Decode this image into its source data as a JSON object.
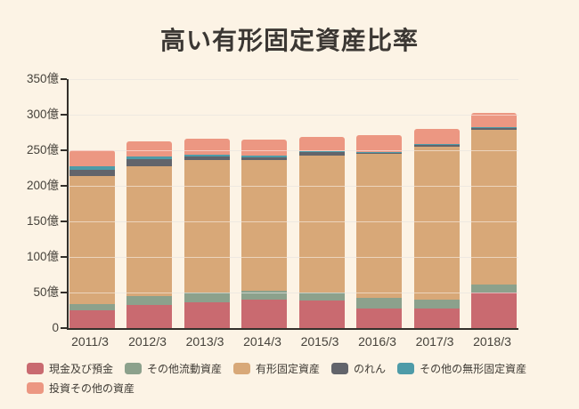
{
  "title": "高い有形固定資産比率",
  "page": {
    "background_color": "#FCF3E5",
    "title_color": "#3B3733",
    "axis_color": "#33302B",
    "gridline_color": "#DDD3C3",
    "tick_text_color": "#46423B"
  },
  "chart_data": {
    "type": "bar",
    "stacked": true,
    "title": "高い有形固定資産比率",
    "xlabel": "",
    "ylabel": "",
    "unit": "億",
    "ylim": [
      0,
      350
    ],
    "yticks": [
      0,
      50,
      100,
      150,
      200,
      250,
      300,
      350
    ],
    "ytick_labels": [
      "0",
      "50億",
      "100億",
      "150億",
      "200億",
      "250億",
      "300億",
      "350億"
    ],
    "grid": true,
    "legend_position": "bottom",
    "categories": [
      "2011/3",
      "2012/3",
      "2013/3",
      "2014/3",
      "2015/3",
      "2016/3",
      "2017/3",
      "2018/3"
    ],
    "series": [
      {
        "name": "現金及び預金",
        "color": "#C96A70",
        "values": [
          25,
          32,
          36,
          40,
          39,
          28,
          28,
          50
        ]
      },
      {
        "name": "その他流動資産",
        "color": "#8CA18C",
        "values": [
          9,
          13,
          14,
          13,
          11,
          14,
          12,
          11
        ]
      },
      {
        "name": "有形固定資産",
        "color": "#D8A878",
        "values": [
          180,
          183,
          186,
          183,
          193,
          203,
          215,
          218
        ]
      },
      {
        "name": "のれん",
        "color": "#62646B",
        "values": [
          9,
          9,
          5,
          4,
          4,
          2,
          2,
          2
        ]
      },
      {
        "name": "その他の無形固定資産",
        "color": "#4E9BA8",
        "values": [
          4,
          4,
          3,
          3,
          2,
          1,
          2,
          1
        ]
      },
      {
        "name": "投資その他の資産",
        "color": "#EC9782",
        "values": [
          23,
          21,
          22,
          22,
          20,
          23,
          21,
          21
        ]
      }
    ],
    "totals": [
      250,
      262,
      266,
      265,
      269,
      271,
      280,
      303
    ],
    "legend_rows": [
      5,
      1
    ]
  }
}
